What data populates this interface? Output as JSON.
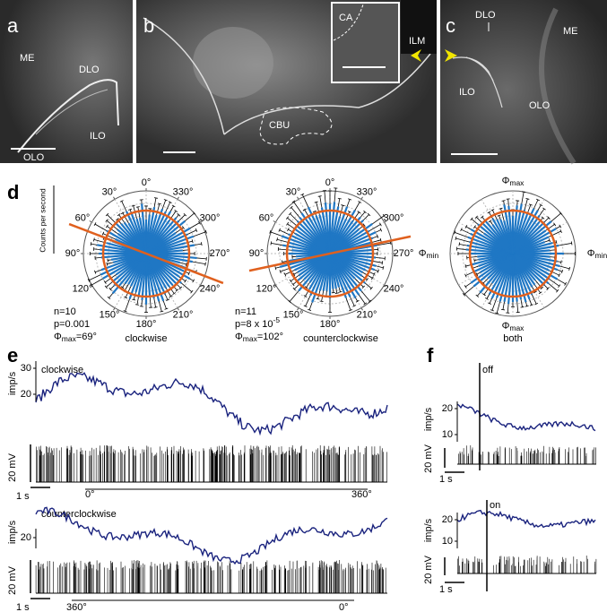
{
  "panel_a": {
    "letter": "a",
    "labels": [
      "ME",
      "DLO",
      "ILO",
      "OLO"
    ]
  },
  "panel_b": {
    "letter": "b",
    "labels": [
      "CA",
      "ILM",
      "CBU"
    ]
  },
  "panel_c": {
    "letter": "c",
    "labels": [
      "DLO",
      "ME",
      "ILO",
      "OLO"
    ]
  },
  "panel_d": {
    "letter": "d",
    "y_label": "Counts per second",
    "angle_ticks": [
      {
        "value": 0,
        "label": "0°"
      },
      {
        "value": 30,
        "label": "30°"
      },
      {
        "value": 60,
        "label": "60°"
      },
      {
        "value": 90,
        "label": "90°"
      },
      {
        "value": 120,
        "label": "120°"
      },
      {
        "value": 150,
        "label": "150°"
      },
      {
        "value": 180,
        "label": "180°"
      },
      {
        "value": 210,
        "label": "210°"
      },
      {
        "value": 240,
        "label": "240°"
      },
      {
        "value": 270,
        "label": "270°"
      },
      {
        "value": 300,
        "label": "300°"
      },
      {
        "value": 330,
        "label": "330°"
      }
    ],
    "plots": [
      {
        "name": "clockwise",
        "n": "n=10",
        "p": "p=0.001",
        "phi": "Φ",
        "phi_sub": "max",
        "phi_value": "=69°"
      },
      {
        "name": "counterclockwise",
        "n": "n=11",
        "p": "p=8 x 10",
        "p_sup": "-5",
        "phi": "Φ",
        "phi_sub": "max",
        "phi_value": "=102°"
      }
    ],
    "both": {
      "name": "both",
      "phi": "Φ",
      "max": "max",
      "min": "min"
    }
  },
  "panel_e": {
    "letter": "e",
    "rate_label": "imp/s",
    "voltage_scale": "20 mV",
    "time_scale": "1 s",
    "clockwise": {
      "label": "clockwise",
      "yticks": [
        30,
        20
      ],
      "start": "0°",
      "end": "360°"
    },
    "counterclockwise": {
      "label": "counterclockwise",
      "yticks": [
        20
      ],
      "start": "360°",
      "end": "0°"
    }
  },
  "panel_f": {
    "letter": "f",
    "rate_label": "imp/s",
    "voltage_scale": "20 mV",
    "time_scale": "1 s",
    "off": {
      "label": "off",
      "yticks": [
        20,
        10
      ]
    },
    "on": {
      "label": "on",
      "yticks": [
        20,
        10
      ]
    }
  }
}
